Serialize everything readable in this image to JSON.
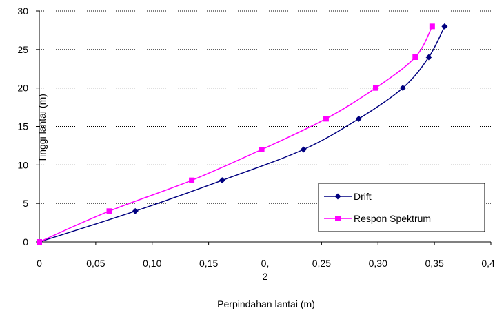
{
  "chart_data": {
    "type": "line",
    "title": "",
    "xlabel": "Perpindahan lantai (m)",
    "ylabel": "Tinggi lantai (m)",
    "xlim": [
      0,
      0.4
    ],
    "ylim": [
      0,
      30
    ],
    "x_ticks": [
      {
        "value": 0.0,
        "label": "0"
      },
      {
        "value": 0.05,
        "label": "0,05"
      },
      {
        "value": 0.1,
        "label": "0,10"
      },
      {
        "value": 0.15,
        "label": "0,15"
      },
      {
        "value": 0.2,
        "label": "0,\n2"
      },
      {
        "value": 0.25,
        "label": "0,25"
      },
      {
        "value": 0.3,
        "label": "0,30"
      },
      {
        "value": 0.35,
        "label": "0,35"
      },
      {
        "value": 0.4,
        "label": "0,40"
      }
    ],
    "y_ticks": [
      {
        "value": 0,
        "label": "0"
      },
      {
        "value": 5,
        "label": "5"
      },
      {
        "value": 10,
        "label": "10"
      },
      {
        "value": 15,
        "label": "15"
      },
      {
        "value": 20,
        "label": "20"
      },
      {
        "value": 25,
        "label": "25"
      },
      {
        "value": 30,
        "label": "30"
      }
    ],
    "grid": "horizontal dotted",
    "legend_position": "bottom-right",
    "series": [
      {
        "name": "Drift",
        "color": "#000080",
        "marker": "diamond",
        "points": [
          {
            "x": 0.0,
            "y": 0
          },
          {
            "x": 0.085,
            "y": 4
          },
          {
            "x": 0.162,
            "y": 8
          },
          {
            "x": 0.234,
            "y": 12
          },
          {
            "x": 0.283,
            "y": 16
          },
          {
            "x": 0.322,
            "y": 20
          },
          {
            "x": 0.345,
            "y": 24
          },
          {
            "x": 0.359,
            "y": 28
          }
        ]
      },
      {
        "name": "Respon Spektrum",
        "color": "#ff00ff",
        "marker": "square",
        "points": [
          {
            "x": 0.0,
            "y": 0
          },
          {
            "x": 0.062,
            "y": 4
          },
          {
            "x": 0.135,
            "y": 8
          },
          {
            "x": 0.197,
            "y": 12
          },
          {
            "x": 0.254,
            "y": 16
          },
          {
            "x": 0.298,
            "y": 20
          },
          {
            "x": 0.333,
            "y": 24
          },
          {
            "x": 0.348,
            "y": 28
          }
        ]
      }
    ]
  }
}
